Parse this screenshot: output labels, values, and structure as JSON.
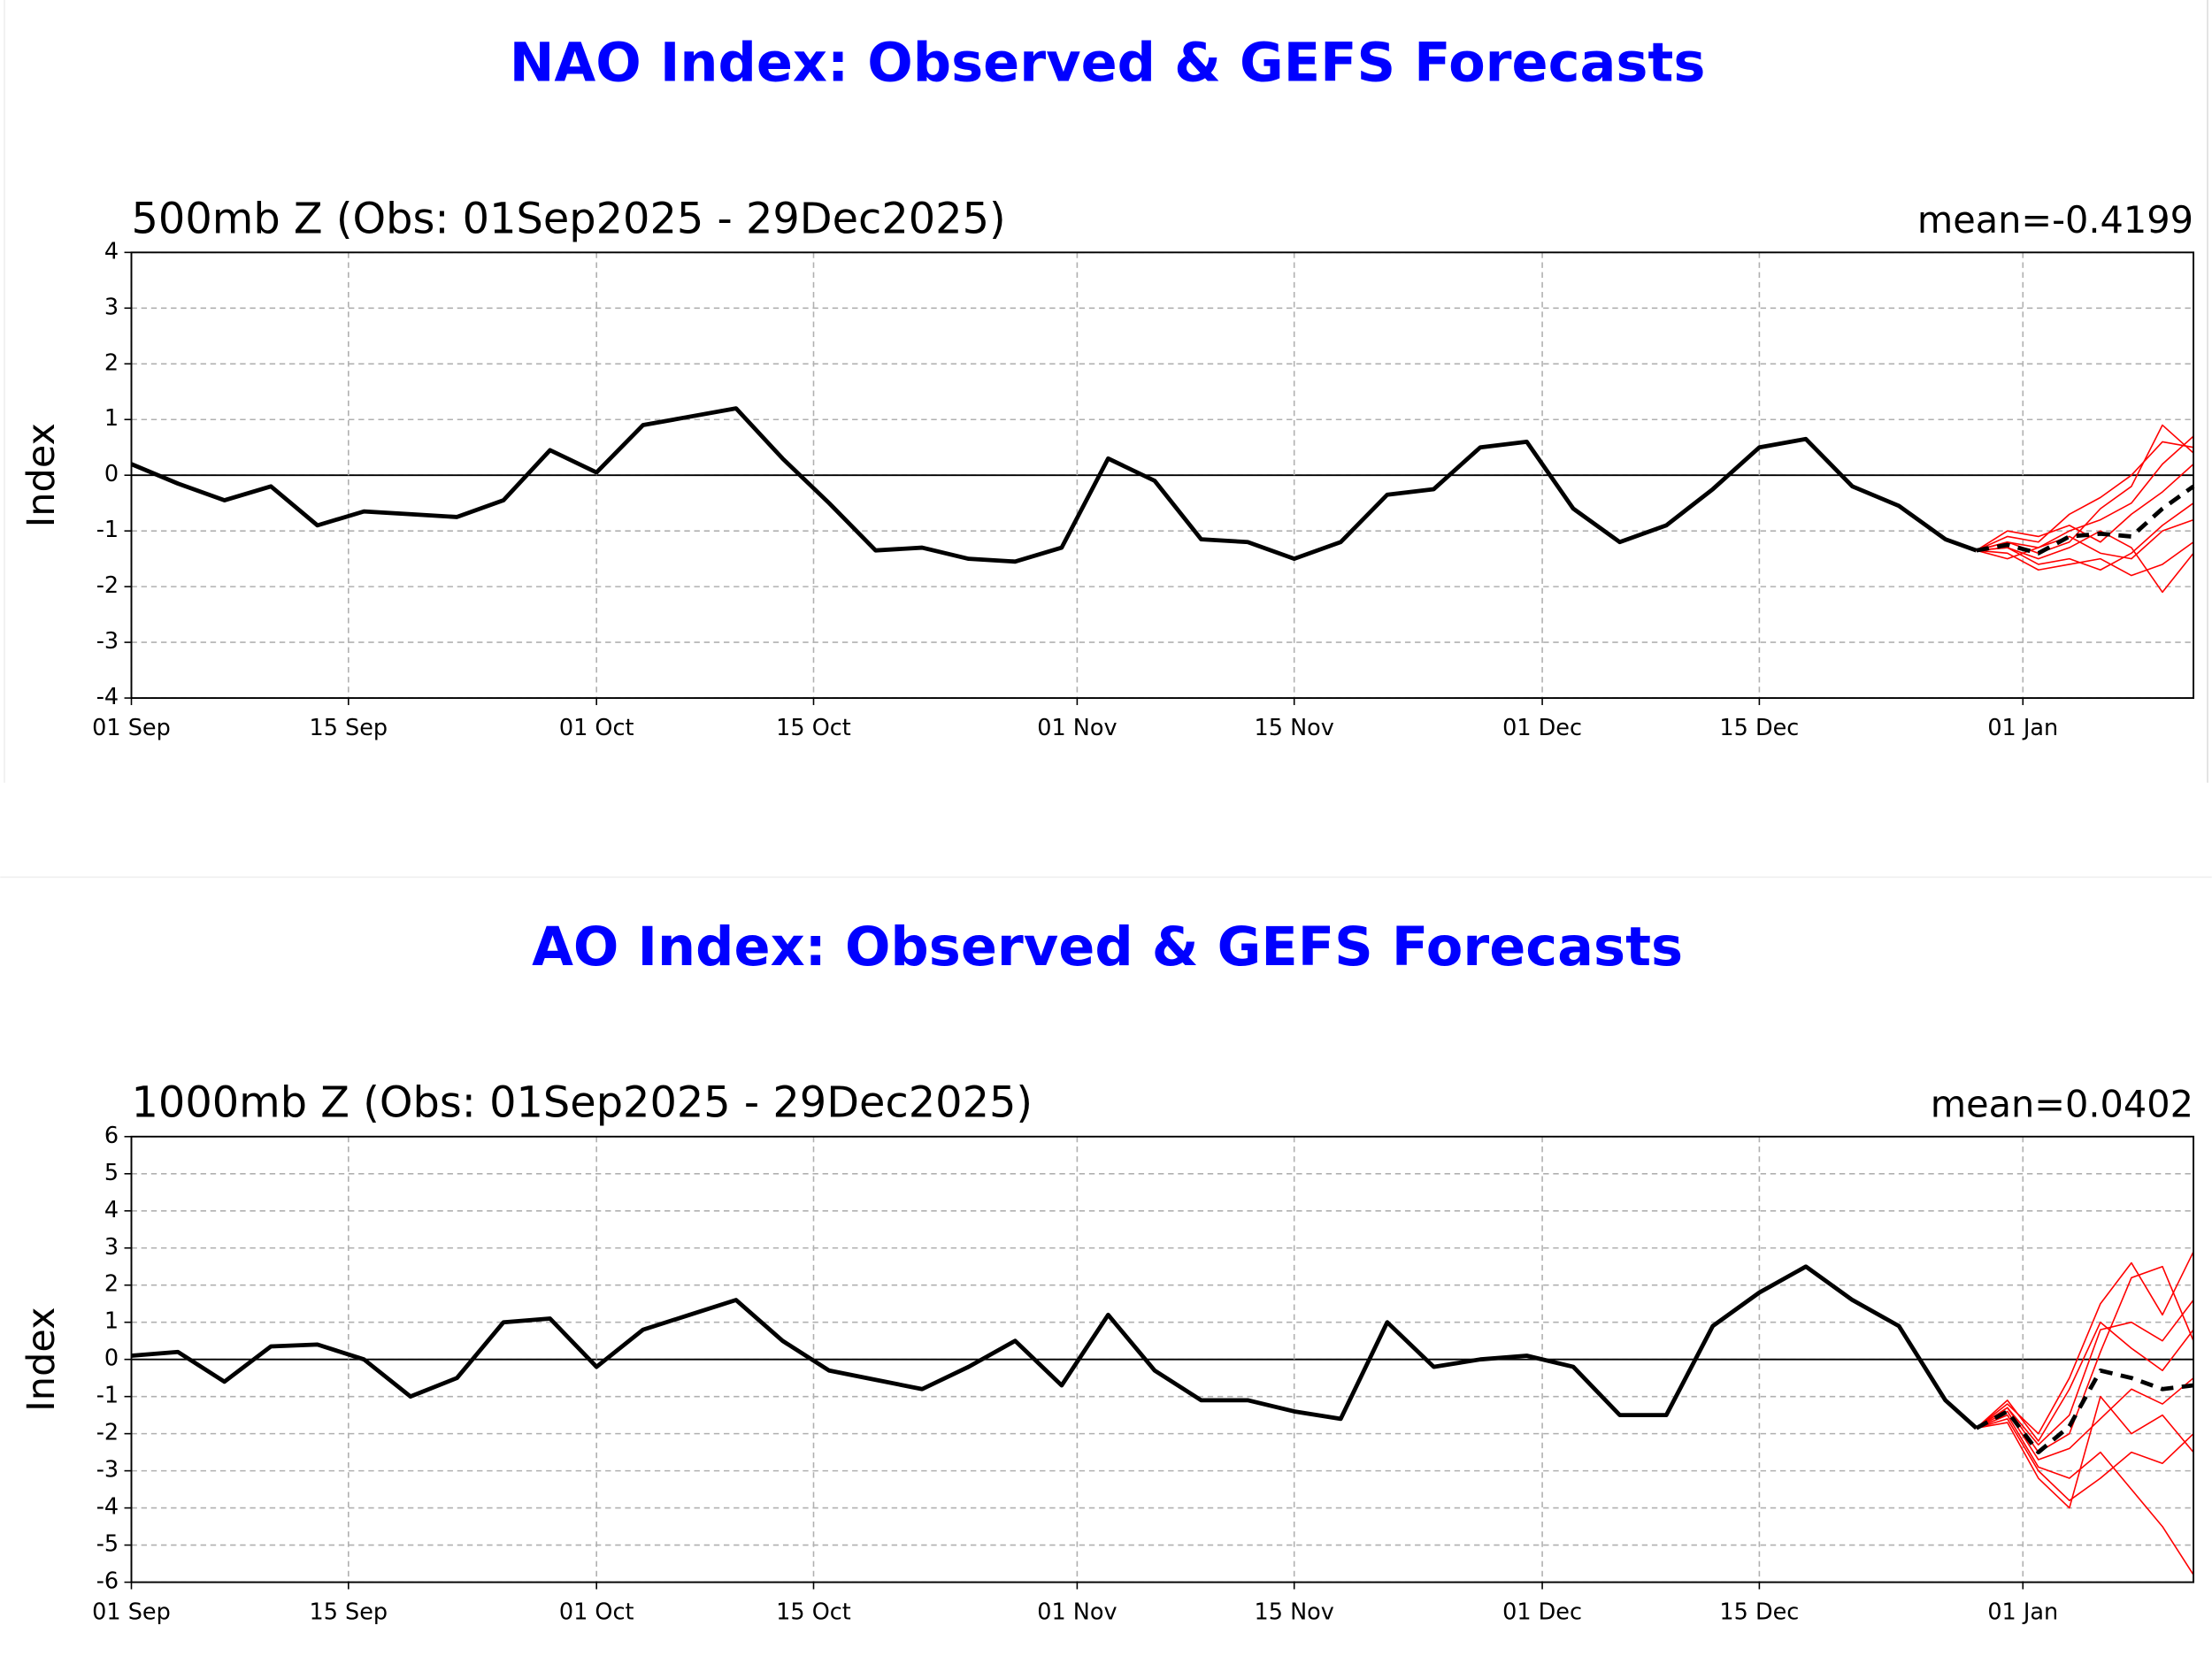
{
  "chart_data": [
    {
      "type": "line",
      "title": "NAO Index: Observed & GEFS Forecasts",
      "subtitle": "500mb Z (Obs: 01Sep2025 - 29Dec2025)",
      "annotation": "mean=-0.4199",
      "ylabel": "Index",
      "xlim": [
        "2025-09-01",
        "2026-01-12"
      ],
      "xticks": [
        {
          "value": "2025-09-01",
          "label": "01 Sep"
        },
        {
          "value": "2025-09-15",
          "label": "15 Sep"
        },
        {
          "value": "2025-10-01",
          "label": "01 Oct"
        },
        {
          "value": "2025-10-15",
          "label": "15 Oct"
        },
        {
          "value": "2025-11-01",
          "label": "01 Nov"
        },
        {
          "value": "2025-11-15",
          "label": "15 Nov"
        },
        {
          "value": "2025-12-01",
          "label": "01 Dec"
        },
        {
          "value": "2025-12-15",
          "label": "15 Dec"
        },
        {
          "value": "2026-01-01",
          "label": "01 Jan"
        }
      ],
      "ylim": [
        -4,
        4
      ],
      "yticks": [
        -4,
        -3,
        -2,
        -1,
        0,
        1,
        2,
        3,
        4
      ],
      "grid": true,
      "series": [
        {
          "color": "#ff0000",
          "style": "thin",
          "x": [
            "2025-12-29",
            "2025-12-31",
            "2026-01-02",
            "2026-01-04",
            "2026-01-06",
            "2026-01-08",
            "2026-01-10",
            "2026-01-12"
          ],
          "values": [
            -1.35,
            -1.1,
            -1.2,
            -0.7,
            -0.4,
            0.0,
            0.6,
            0.5
          ]
        },
        {
          "color": "#ff0000",
          "style": "thin",
          "x": [
            "2025-12-29",
            "2025-12-31",
            "2026-01-02",
            "2026-01-04",
            "2026-01-06",
            "2026-01-08",
            "2026-01-10",
            "2026-01-12"
          ],
          "values": [
            -1.35,
            -1.3,
            -1.6,
            -1.5,
            -1.7,
            -1.4,
            -0.9,
            -0.5
          ]
        },
        {
          "color": "#ff0000",
          "style": "thin",
          "x": [
            "2025-12-29",
            "2025-12-31",
            "2026-01-02",
            "2026-01-04",
            "2026-01-06",
            "2026-01-08",
            "2026-01-10",
            "2026-01-12"
          ],
          "values": [
            -1.35,
            -1.2,
            -1.3,
            -1.0,
            -0.8,
            -0.5,
            0.2,
            0.7
          ]
        },
        {
          "color": "#ff0000",
          "style": "thin",
          "x": [
            "2025-12-29",
            "2025-12-31",
            "2026-01-02",
            "2026-01-04",
            "2026-01-06",
            "2026-01-08",
            "2026-01-10",
            "2026-01-12"
          ],
          "values": [
            -1.35,
            -1.4,
            -1.7,
            -1.6,
            -1.5,
            -1.8,
            -1.6,
            -1.2
          ]
        },
        {
          "color": "#ff0000",
          "style": "thin",
          "x": [
            "2025-12-29",
            "2025-12-31",
            "2026-01-02",
            "2026-01-04",
            "2026-01-06",
            "2026-01-08",
            "2026-01-10",
            "2026-01-12"
          ],
          "values": [
            -1.35,
            -1.0,
            -1.1,
            -0.9,
            -1.2,
            -0.7,
            -0.3,
            0.2
          ]
        },
        {
          "color": "#ff0000",
          "style": "thin",
          "x": [
            "2025-12-29",
            "2025-12-31",
            "2026-01-02",
            "2026-01-04",
            "2026-01-06",
            "2026-01-08",
            "2026-01-10",
            "2026-01-12"
          ],
          "values": [
            -1.35,
            -1.3,
            -1.5,
            -1.3,
            -1.0,
            -1.3,
            -2.1,
            -1.4
          ]
        },
        {
          "color": "#ff0000",
          "style": "thin",
          "x": [
            "2025-12-29",
            "2025-12-31",
            "2026-01-02",
            "2026-01-04",
            "2026-01-06",
            "2026-01-08",
            "2026-01-10",
            "2026-01-12"
          ],
          "values": [
            -1.35,
            -1.2,
            -1.4,
            -1.2,
            -0.6,
            -0.2,
            0.9,
            0.4
          ]
        },
        {
          "color": "#ff0000",
          "style": "thin",
          "x": [
            "2025-12-29",
            "2025-12-31",
            "2026-01-02",
            "2026-01-04",
            "2026-01-06",
            "2026-01-08",
            "2026-01-10",
            "2026-01-12"
          ],
          "values": [
            -1.35,
            -1.5,
            -1.3,
            -1.1,
            -1.4,
            -1.5,
            -1.0,
            -0.8
          ]
        },
        {
          "color": "#000000",
          "style": "solid",
          "x": [
            "2025-09-01",
            "2025-09-04",
            "2025-09-07",
            "2025-09-10",
            "2025-09-13",
            "2025-09-16",
            "2025-09-19",
            "2025-09-22",
            "2025-09-25",
            "2025-09-28",
            "2025-10-01",
            "2025-10-04",
            "2025-10-07",
            "2025-10-10",
            "2025-10-13",
            "2025-10-16",
            "2025-10-19",
            "2025-10-22",
            "2025-10-25",
            "2025-10-28",
            "2025-10-31",
            "2025-11-03",
            "2025-11-06",
            "2025-11-09",
            "2025-11-12",
            "2025-11-15",
            "2025-11-18",
            "2025-11-21",
            "2025-11-24",
            "2025-11-27",
            "2025-11-30",
            "2025-12-03",
            "2025-12-06",
            "2025-12-09",
            "2025-12-12",
            "2025-12-15",
            "2025-12-18",
            "2025-12-21",
            "2025-12-24",
            "2025-12-27",
            "2025-12-29"
          ],
          "values": [
            0.2,
            -0.15,
            -0.45,
            -0.2,
            -0.9,
            -0.65,
            -0.7,
            -0.75,
            -0.45,
            0.45,
            0.05,
            0.9,
            1.05,
            1.2,
            0.3,
            -0.5,
            -1.35,
            -1.3,
            -1.5,
            -1.55,
            -1.3,
            0.3,
            -0.1,
            -1.15,
            -1.2,
            -1.5,
            -1.2,
            -0.35,
            -0.25,
            0.5,
            0.6,
            -0.6,
            -1.2,
            -0.9,
            -0.25,
            0.5,
            0.65,
            -0.2,
            -0.55,
            -1.15,
            -1.35
          ]
        },
        {
          "color": "#000000",
          "style": "dashed",
          "x": [
            "2025-12-29",
            "2025-12-31",
            "2026-01-02",
            "2026-01-04",
            "2026-01-06",
            "2026-01-08",
            "2026-01-10",
            "2026-01-12"
          ],
          "values": [
            -1.35,
            -1.25,
            -1.4,
            -1.1,
            -1.05,
            -1.1,
            -0.6,
            -0.2
          ]
        }
      ]
    },
    {
      "type": "line",
      "title": "AO Index: Observed & GEFS Forecasts",
      "subtitle": "1000mb Z (Obs: 01Sep2025 - 29Dec2025)",
      "annotation": "mean=0.0402",
      "ylabel": "Index",
      "xlim": [
        "2025-09-01",
        "2026-01-12"
      ],
      "xticks": [
        {
          "value": "2025-09-01",
          "label": "01 Sep"
        },
        {
          "value": "2025-09-15",
          "label": "15 Sep"
        },
        {
          "value": "2025-10-01",
          "label": "01 Oct"
        },
        {
          "value": "2025-10-15",
          "label": "15 Oct"
        },
        {
          "value": "2025-11-01",
          "label": "01 Nov"
        },
        {
          "value": "2025-11-15",
          "label": "15 Nov"
        },
        {
          "value": "2025-12-01",
          "label": "01 Dec"
        },
        {
          "value": "2025-12-15",
          "label": "15 Dec"
        },
        {
          "value": "2026-01-01",
          "label": "01 Jan"
        }
      ],
      "ylim": [
        -6,
        6
      ],
      "yticks": [
        -6,
        -5,
        -4,
        -3,
        -2,
        -1,
        0,
        1,
        2,
        3,
        4,
        5,
        6
      ],
      "grid": true,
      "series": [
        {
          "color": "#ff0000",
          "style": "thin",
          "x": [
            "2025-12-29",
            "2025-12-31",
            "2026-01-02",
            "2026-01-04",
            "2026-01-06",
            "2026-01-08",
            "2026-01-10",
            "2026-01-12"
          ],
          "values": [
            -1.85,
            -1.2,
            -2.0,
            -0.5,
            1.5,
            2.6,
            1.2,
            2.9
          ]
        },
        {
          "color": "#ff0000",
          "style": "thin",
          "x": [
            "2025-12-29",
            "2025-12-31",
            "2026-01-02",
            "2026-01-04",
            "2026-01-06",
            "2026-01-08",
            "2026-01-10",
            "2026-01-12"
          ],
          "values": [
            -1.85,
            -1.6,
            -3.0,
            -3.8,
            -3.2,
            -2.5,
            -2.8,
            -2.0
          ]
        },
        {
          "color": "#ff0000",
          "style": "thin",
          "x": [
            "2025-12-29",
            "2025-12-31",
            "2026-01-02",
            "2026-01-04",
            "2026-01-06",
            "2026-01-08",
            "2026-01-10",
            "2026-01-12"
          ],
          "values": [
            -1.85,
            -1.3,
            -2.3,
            -1.5,
            0.8,
            1.0,
            0.5,
            1.6
          ]
        },
        {
          "color": "#ff0000",
          "style": "thin",
          "x": [
            "2025-12-29",
            "2025-12-31",
            "2026-01-02",
            "2026-01-04",
            "2026-01-06",
            "2026-01-08",
            "2026-01-10",
            "2026-01-12"
          ],
          "values": [
            -1.85,
            -1.5,
            -2.9,
            -3.2,
            -2.5,
            -3.5,
            -4.5,
            -5.8
          ]
        },
        {
          "color": "#ff0000",
          "style": "thin",
          "x": [
            "2025-12-29",
            "2025-12-31",
            "2026-01-02",
            "2026-01-04",
            "2026-01-06",
            "2026-01-08",
            "2026-01-10",
            "2026-01-12"
          ],
          "values": [
            -1.85,
            -1.1,
            -2.2,
            -0.8,
            1.0,
            0.3,
            -0.3,
            0.8
          ]
        },
        {
          "color": "#ff0000",
          "style": "thin",
          "x": [
            "2025-12-29",
            "2025-12-31",
            "2026-01-02",
            "2026-01-04",
            "2026-01-06",
            "2026-01-08",
            "2026-01-10",
            "2026-01-12"
          ],
          "values": [
            -1.85,
            -1.7,
            -3.2,
            -4.0,
            -1.0,
            -2.0,
            -1.5,
            -2.5
          ]
        },
        {
          "color": "#ff0000",
          "style": "thin",
          "x": [
            "2025-12-29",
            "2025-12-31",
            "2026-01-02",
            "2026-01-04",
            "2026-01-06",
            "2026-01-08",
            "2026-01-10",
            "2026-01-12"
          ],
          "values": [
            -1.85,
            -1.3,
            -2.5,
            -2.0,
            0.2,
            2.2,
            2.5,
            0.5
          ]
        },
        {
          "color": "#ff0000",
          "style": "thin",
          "x": [
            "2025-12-29",
            "2025-12-31",
            "2026-01-02",
            "2026-01-04",
            "2026-01-06",
            "2026-01-08",
            "2026-01-10",
            "2026-01-12"
          ],
          "values": [
            -1.85,
            -1.4,
            -2.7,
            -2.4,
            -1.6,
            -0.8,
            -1.2,
            -0.5
          ]
        },
        {
          "color": "#000000",
          "style": "solid",
          "x": [
            "2025-09-01",
            "2025-09-04",
            "2025-09-07",
            "2025-09-10",
            "2025-09-13",
            "2025-09-16",
            "2025-09-19",
            "2025-09-22",
            "2025-09-25",
            "2025-09-28",
            "2025-10-01",
            "2025-10-04",
            "2025-10-07",
            "2025-10-10",
            "2025-10-13",
            "2025-10-16",
            "2025-10-19",
            "2025-10-22",
            "2025-10-25",
            "2025-10-28",
            "2025-10-31",
            "2025-11-03",
            "2025-11-06",
            "2025-11-09",
            "2025-11-12",
            "2025-11-15",
            "2025-11-18",
            "2025-11-21",
            "2025-11-24",
            "2025-11-27",
            "2025-11-30",
            "2025-12-03",
            "2025-12-06",
            "2025-12-09",
            "2025-12-12",
            "2025-12-15",
            "2025-12-18",
            "2025-12-21",
            "2025-12-24",
            "2025-12-27",
            "2025-12-29"
          ],
          "values": [
            0.1,
            0.2,
            -0.6,
            0.35,
            0.4,
            0.0,
            -1.0,
            -0.5,
            1.0,
            1.1,
            -0.2,
            0.8,
            1.2,
            1.6,
            0.5,
            -0.3,
            -0.55,
            -0.8,
            -0.2,
            0.5,
            -0.7,
            1.2,
            -0.3,
            -1.1,
            -1.1,
            -1.4,
            -1.6,
            1.0,
            -0.2,
            0.0,
            0.1,
            -0.2,
            -1.5,
            -1.5,
            0.9,
            1.8,
            2.5,
            1.6,
            0.9,
            -1.1,
            -1.85
          ]
        },
        {
          "color": "#000000",
          "style": "dashed",
          "x": [
            "2025-12-29",
            "2025-12-31",
            "2026-01-02",
            "2026-01-04",
            "2026-01-06",
            "2026-01-08",
            "2026-01-10",
            "2026-01-12"
          ],
          "values": [
            -1.85,
            -1.4,
            -2.5,
            -1.8,
            -0.3,
            -0.5,
            -0.8,
            -0.7
          ]
        }
      ]
    }
  ]
}
